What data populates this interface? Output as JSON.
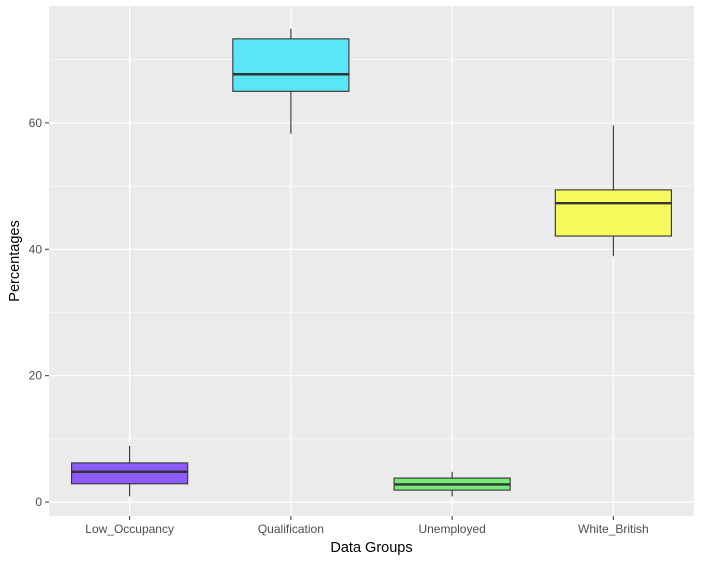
{
  "chart_data": {
    "type": "boxplot",
    "xlabel": "Data Groups",
    "ylabel": "Percentages",
    "ylim": [
      -2.2,
      78.5
    ],
    "yticks": [
      0,
      20,
      40,
      60
    ],
    "grid": true,
    "legend": "none",
    "colors": {
      "panel_bg": "#ebebeb",
      "grid": "#ffffff",
      "box_outline": "#333333"
    },
    "categories": [
      "Low_Occupancy",
      "Qualification",
      "Unemployed",
      "White_British"
    ],
    "boxes": [
      {
        "category": "Low_Occupancy",
        "min": 0.9,
        "q1": 2.9,
        "median": 4.8,
        "q3": 6.2,
        "max": 8.9,
        "fill": "#8c5bfb"
      },
      {
        "category": "Qualification",
        "min": 58.3,
        "q1": 65.0,
        "median": 67.7,
        "q3": 73.3,
        "max": 74.9,
        "fill": "#5ae6f6"
      },
      {
        "category": "Unemployed",
        "min": 0.9,
        "q1": 1.9,
        "median": 2.8,
        "q3": 3.8,
        "max": 4.8,
        "fill": "#74ea79"
      },
      {
        "category": "White_British",
        "min": 38.9,
        "q1": 42.1,
        "median": 47.3,
        "q3": 49.4,
        "max": 59.6,
        "fill": "#f6f95b"
      }
    ]
  }
}
